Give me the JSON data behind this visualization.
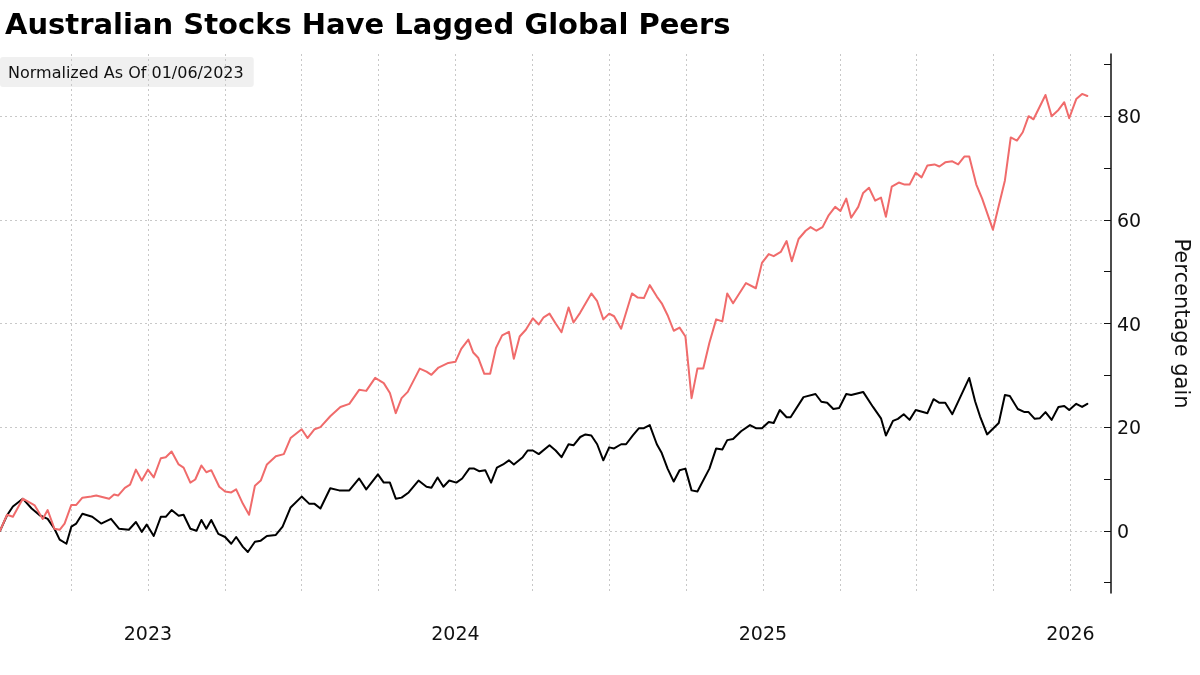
{
  "chart_data": {
    "type": "line",
    "title": "Australian Stocks Have Lagged Global Peers",
    "legend_title": "Normalized As Of 01/06/2023",
    "ylabel": "Percentage gain",
    "xlim": [
      2023.019,
      2026.632
    ],
    "xticks": [
      {
        "value": 2023.25,
        "label": null
      },
      {
        "value": 2023.5,
        "label": "2023"
      },
      {
        "value": 2023.75,
        "label": null
      },
      {
        "value": 2024,
        "label": null
      },
      {
        "value": 2024.25,
        "label": null
      },
      {
        "value": 2024.5,
        "label": "2024"
      },
      {
        "value": 2024.75,
        "label": null
      },
      {
        "value": 2025,
        "label": null
      },
      {
        "value": 2025.25,
        "label": null
      },
      {
        "value": 2025.5,
        "label": "2025"
      },
      {
        "value": 2025.75,
        "label": null
      },
      {
        "value": 2026,
        "label": null
      },
      {
        "value": 2026.25,
        "label": null
      },
      {
        "value": 2026.5,
        "label": "2026"
      }
    ],
    "ylim": [
      -12,
      92
    ],
    "yticks": [
      {
        "value": -10,
        "label": null
      },
      0,
      {
        "value": 10,
        "label": null
      },
      20,
      {
        "value": 30,
        "label": null
      },
      40,
      {
        "value": 50,
        "label": null
      },
      60,
      {
        "value": 70,
        "label": null
      },
      80,
      {
        "value": 90,
        "label": null
      }
    ],
    "grid": true,
    "series": [
      {
        "color": "#000000",
        "x": [
          2023.019,
          2023.042,
          2023.061,
          2023.093,
          2023.122,
          2023.148,
          2023.174,
          2023.196,
          2023.213,
          2023.235,
          2023.251,
          2023.267,
          2023.287,
          2023.319,
          2023.348,
          2023.38,
          2023.406,
          2023.438,
          2023.461,
          2023.48,
          2023.496,
          2023.519,
          2023.542,
          2023.558,
          2023.577,
          2023.6,
          2023.616,
          2023.638,
          2023.658,
          2023.674,
          2023.69,
          2023.706,
          2023.729,
          2023.751,
          2023.771,
          2023.787,
          2023.809,
          2023.825,
          2023.848,
          2023.867,
          2023.887,
          2023.916,
          2023.938,
          2023.964,
          2024.0,
          2024.025,
          2024.042,
          2024.061,
          2024.093,
          2024.122,
          2024.155,
          2024.187,
          2024.21,
          2024.248,
          2024.267,
          2024.287,
          2024.306,
          2024.325,
          2024.348,
          2024.38,
          2024.406,
          2024.422,
          2024.442,
          2024.461,
          2024.48,
          2024.503,
          2024.522,
          2024.545,
          2024.561,
          2024.577,
          2024.597,
          2024.616,
          2024.635,
          2024.655,
          2024.674,
          2024.69,
          2024.719,
          2024.735,
          2024.752,
          2024.771,
          2024.806,
          2024.826,
          2024.845,
          2024.868,
          2024.884,
          2024.906,
          2024.923,
          2024.942,
          2024.961,
          2024.981,
          2025.0,
          2025.016,
          2025.039,
          2025.055,
          2025.077,
          2025.097,
          2025.113,
          2025.132,
          2025.155,
          2025.171,
          2025.19,
          2025.21,
          2025.229,
          2025.248,
          2025.268,
          2025.287,
          2025.326,
          2025.348,
          2025.368,
          2025.384,
          2025.403,
          2025.429,
          2025.458,
          2025.477,
          2025.497,
          2025.519,
          2025.535,
          2025.555,
          2025.577,
          2025.59,
          2025.632,
          2025.671,
          2025.69,
          2025.709,
          2025.729,
          2025.748,
          2025.771,
          2025.787,
          2025.826,
          2025.858,
          2025.884,
          2025.9,
          2025.923,
          2025.939,
          2025.958,
          2025.977,
          2025.997,
          2026.035,
          2026.055,
          2026.074,
          2026.093,
          2026.116,
          2026.171,
          2026.19,
          2026.206,
          2026.229,
          2026.267,
          2026.287,
          2026.303,
          2026.329,
          2026.351,
          2026.364,
          2026.384,
          2026.4,
          2026.419,
          2026.439,
          2026.461,
          2026.48,
          2026.496,
          2026.519,
          2026.538,
          2026.555
        ],
        "values": [
          0,
          3,
          4.7,
          6.2,
          4.3,
          3,
          2.3,
          0.4,
          -1.7,
          -2.5,
          0.8,
          1.4,
          3.3,
          2.7,
          1.4,
          2.3,
          0.4,
          0.2,
          1.7,
          -0.2,
          1.2,
          -1,
          2.7,
          2.7,
          4,
          2.9,
          3.1,
          0.4,
          0,
          2.1,
          0.4,
          2.1,
          -0.6,
          -1.2,
          -2.5,
          -1.2,
          -3.1,
          -4.1,
          -2.1,
          -1.9,
          -1,
          -0.8,
          0.8,
          4.5,
          6.6,
          5.2,
          5.2,
          4.3,
          8.2,
          7.8,
          7.8,
          10.1,
          8,
          10.9,
          9.3,
          9.3,
          6.2,
          6.4,
          7.4,
          9.7,
          8.5,
          8.3,
          10.3,
          8.5,
          9.7,
          9.3,
          10.1,
          12,
          12,
          11.5,
          11.7,
          9.3,
          12.2,
          12.8,
          13.6,
          12.8,
          14.2,
          15.5,
          15.5,
          14.8,
          16.5,
          15.5,
          14.2,
          16.7,
          16.5,
          18.1,
          18.6,
          18.4,
          16.7,
          13.6,
          16.1,
          15.9,
          16.7,
          16.7,
          18.4,
          19.8,
          19.8,
          20.4,
          16.7,
          15,
          12,
          9.5,
          11.7,
          12,
          7.8,
          7.6,
          12,
          15.9,
          15.7,
          17.5,
          17.7,
          19.2,
          20.4,
          19.8,
          19.8,
          21,
          20.8,
          23.3,
          21.9,
          21.9,
          25.8,
          26.4,
          24.9,
          24.7,
          23.5,
          23.7,
          26.4,
          26.2,
          26.8,
          23.9,
          21.7,
          18.4,
          21.2,
          21.6,
          22.5,
          21.4,
          23.3,
          22.7,
          25.4,
          24.7,
          24.7,
          22.5,
          29.5,
          25,
          22.1,
          18.6,
          20.8,
          26.2,
          26,
          23.5,
          22.9,
          22.9,
          21.6,
          21.7,
          22.9,
          21.4,
          23.9,
          24.1,
          23.3,
          24.5,
          23.9,
          24.5
        ]
      },
      {
        "color": "#f06b6b",
        "x": [
          2023.019,
          2023.042,
          2023.061,
          2023.093,
          2023.132,
          2023.158,
          2023.174,
          2023.196,
          2023.213,
          2023.229,
          2023.251,
          2023.267,
          2023.287,
          2023.316,
          2023.332,
          2023.374,
          2023.39,
          2023.403,
          2023.425,
          2023.442,
          2023.461,
          2023.48,
          2023.5,
          2023.519,
          2023.542,
          2023.558,
          2023.577,
          2023.6,
          2023.616,
          2023.638,
          2023.654,
          2023.674,
          2023.69,
          2023.706,
          2023.732,
          2023.751,
          2023.771,
          2023.787,
          2023.809,
          2023.829,
          2023.848,
          2023.867,
          2023.887,
          2023.916,
          2023.942,
          2023.964,
          2024.0,
          2024.019,
          2024.042,
          2024.061,
          2024.093,
          2024.126,
          2024.155,
          2024.187,
          2024.21,
          2024.239,
          2024.267,
          2024.287,
          2024.306,
          2024.325,
          2024.345,
          2024.384,
          2024.406,
          2024.422,
          2024.445,
          2024.477,
          2024.5,
          2024.519,
          2024.542,
          2024.558,
          2024.574,
          2024.594,
          2024.613,
          2024.632,
          2024.652,
          2024.674,
          2024.69,
          2024.709,
          2024.729,
          2024.752,
          2024.771,
          2024.787,
          2024.806,
          2024.826,
          2024.845,
          2024.868,
          2024.884,
          2024.906,
          2024.942,
          2024.961,
          2024.981,
          2025.0,
          2025.016,
          2025.039,
          2025.074,
          2025.093,
          2025.113,
          2025.132,
          2025.155,
          2025.171,
          2025.19,
          2025.21,
          2025.229,
          2025.248,
          2025.268,
          2025.287,
          2025.306,
          2025.326,
          2025.348,
          2025.368,
          2025.384,
          2025.403,
          2025.445,
          2025.477,
          2025.497,
          2025.519,
          2025.535,
          2025.558,
          2025.577,
          2025.594,
          2025.616,
          2025.639,
          2025.655,
          2025.674,
          2025.694,
          2025.713,
          2025.735,
          2025.752,
          2025.771,
          2025.787,
          2025.81,
          2025.826,
          2025.845,
          2025.865,
          2025.884,
          2025.9,
          2025.919,
          2025.942,
          2025.961,
          2025.977,
          2025.997,
          2026.016,
          2026.035,
          2026.058,
          2026.074,
          2026.093,
          2026.116,
          2026.135,
          2026.155,
          2026.171,
          2026.194,
          2026.213,
          2026.248,
          2026.287,
          2026.306,
          2026.326,
          2026.345,
          2026.364,
          2026.38,
          2026.419,
          2026.439,
          2026.461,
          2026.48,
          2026.496,
          2026.519,
          2026.538,
          2026.555
        ],
        "values": [
          0,
          3.1,
          2.7,
          6.2,
          4.9,
          2.3,
          4,
          0.4,
          0.2,
          1.4,
          5,
          5,
          6.4,
          6.6,
          6.8,
          6.2,
          7,
          6.8,
          8.3,
          8.9,
          11.8,
          9.7,
          11.8,
          10.3,
          14,
          14.2,
          15.3,
          12.8,
          12.2,
          9.3,
          9.9,
          12.6,
          11.3,
          11.7,
          8.5,
          7.6,
          7.4,
          8,
          5.2,
          3.1,
          8.7,
          9.7,
          12.8,
          14.4,
          14.8,
          17.9,
          19.6,
          17.9,
          19.6,
          20,
          22.1,
          23.9,
          24.5,
          27.2,
          27,
          29.5,
          28.5,
          26.6,
          22.7,
          25.6,
          26.8,
          31.3,
          30.7,
          30.1,
          31.5,
          32.4,
          32.6,
          35.1,
          36.9,
          34.4,
          33.4,
          30.3,
          30.3,
          35.3,
          37.7,
          38.4,
          33.2,
          37.5,
          38.8,
          41,
          39.8,
          41.2,
          41.9,
          40,
          38.3,
          43.1,
          40.2,
          42.1,
          45.8,
          44.3,
          40.8,
          41.9,
          41.4,
          39,
          45.8,
          45,
          44.9,
          47.4,
          45.2,
          43.9,
          41.6,
          38.6,
          39.2,
          37.5,
          25.6,
          31.3,
          31.3,
          36.3,
          40.8,
          40.4,
          45.8,
          43.9,
          47.8,
          46.8,
          51.7,
          53.4,
          53,
          53.8,
          55.9,
          52,
          56.3,
          57.9,
          58.6,
          57.9,
          58.6,
          60.8,
          62.5,
          61.7,
          64.1,
          60.4,
          62.5,
          65.2,
          66.2,
          63.7,
          64.3,
          60.6,
          66.4,
          67.2,
          66.8,
          66.8,
          69.1,
          68.2,
          70.5,
          70.7,
          70.3,
          71.1,
          71.3,
          70.7,
          72.2,
          72.2,
          66.8,
          64.1,
          58.1,
          67.6,
          75.9,
          75.3,
          76.9,
          80,
          79.4,
          84.1,
          80,
          81.2,
          82.7,
          79.6,
          83.3,
          84.3,
          83.9
        ]
      }
    ]
  }
}
